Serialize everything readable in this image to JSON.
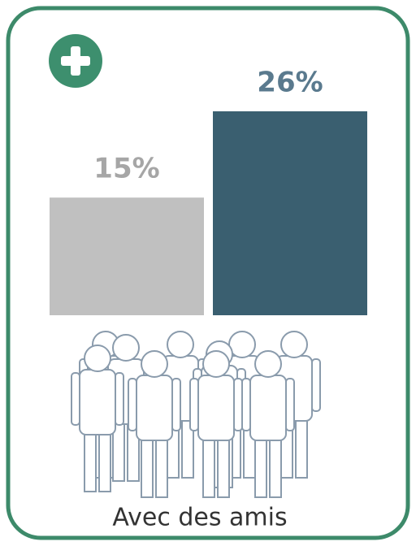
{
  "chart_data": {
    "type": "bar",
    "categories": [
      null,
      null
    ],
    "values": [
      15,
      26
    ],
    "value_labels": [
      "15%",
      "26%"
    ],
    "colors": [
      "#c0c0c0",
      "#3a5f70"
    ],
    "value_label_colors": [
      "#a6a6a6",
      "#5a7a8e"
    ],
    "xlabel": "Avec des amis"
  }
}
